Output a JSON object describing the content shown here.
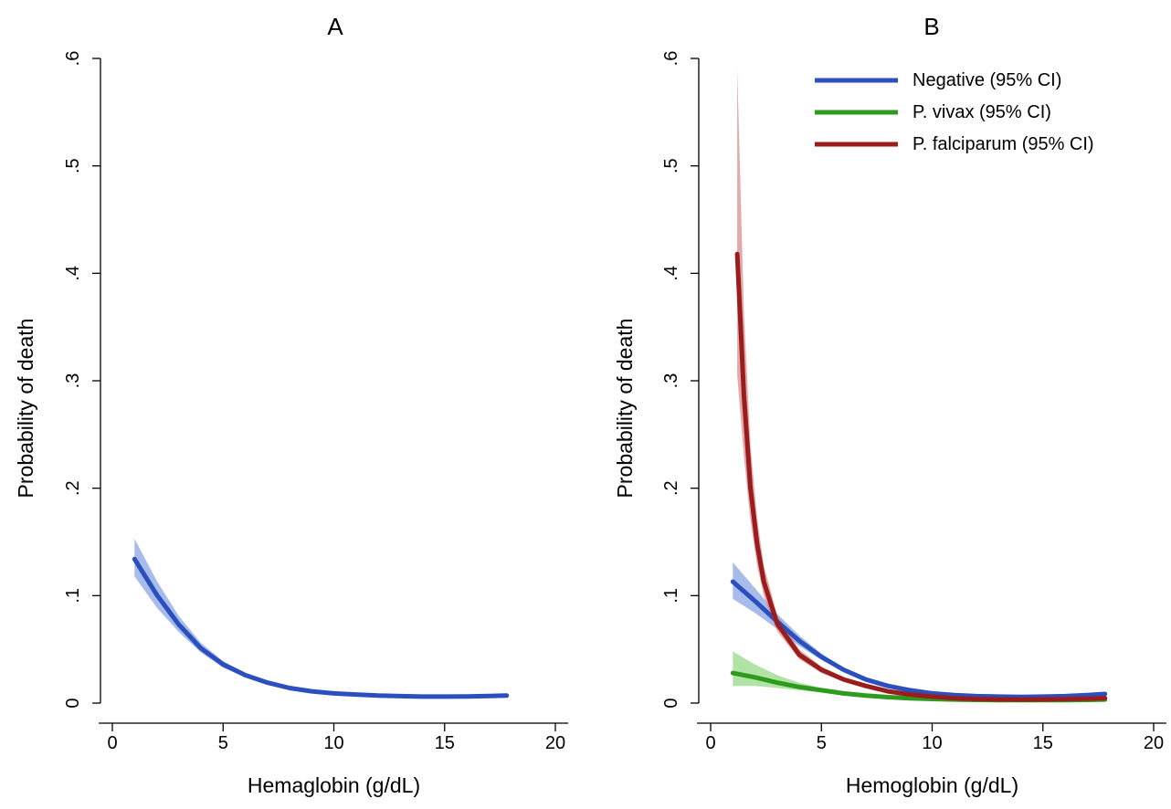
{
  "chart_data": [
    {
      "type": "line",
      "title": "A",
      "xlabel": "Hemaglobin (g/dL)",
      "ylabel": "Probability of death",
      "xlim": [
        0,
        20
      ],
      "ylim": [
        0,
        0.6
      ],
      "xticks": [
        0,
        5,
        10,
        15,
        20
      ],
      "xtick_labels": [
        "0",
        "5",
        "10",
        "15",
        "20"
      ],
      "yticks": [
        0,
        0.1,
        0.2,
        0.3,
        0.4,
        0.5,
        0.6
      ],
      "ytick_labels": [
        "0",
        ".1",
        ".2",
        ".3",
        ".4",
        ".5",
        ".6"
      ],
      "grid": false,
      "series": [
        {
          "color": "#2b4fbe",
          "band_color": "#6d8fdc",
          "x": [
            1,
            2,
            3,
            4,
            5,
            6,
            7,
            8,
            9,
            10,
            11,
            12,
            13,
            14,
            15,
            16,
            17,
            17.8
          ],
          "y": [
            0.134,
            0.101,
            0.073,
            0.051,
            0.036,
            0.026,
            0.019,
            0.014,
            0.011,
            0.009,
            0.008,
            0.007,
            0.0065,
            0.006,
            0.006,
            0.0062,
            0.0066,
            0.007
          ],
          "lower": [
            0.118,
            0.089,
            0.066,
            0.047,
            0.033,
            0.024,
            0.018,
            0.013,
            0.01,
            0.008,
            0.007,
            0.0062,
            0.0057,
            0.0053,
            0.0052,
            0.0053,
            0.0055,
            0.0057
          ],
          "upper": [
            0.153,
            0.114,
            0.081,
            0.056,
            0.039,
            0.028,
            0.02,
            0.015,
            0.012,
            0.01,
            0.009,
            0.008,
            0.0073,
            0.0068,
            0.0068,
            0.0072,
            0.0078,
            0.0085
          ]
        }
      ]
    },
    {
      "type": "line",
      "title": "B",
      "xlabel": "Hemoglobin (g/dL)",
      "ylabel": "Probability of death",
      "xlim": [
        0,
        20
      ],
      "ylim": [
        0,
        0.6
      ],
      "xticks": [
        0,
        5,
        10,
        15,
        20
      ],
      "xtick_labels": [
        "0",
        "5",
        "10",
        "15",
        "20"
      ],
      "yticks": [
        0,
        0.1,
        0.2,
        0.3,
        0.4,
        0.5,
        0.6
      ],
      "ytick_labels": [
        "0",
        ".1",
        ".2",
        ".3",
        ".4",
        ".5",
        ".6"
      ],
      "grid": false,
      "legend_position": "top-right",
      "series": [
        {
          "name": "Negative (95% CI)",
          "color": "#2b4fbe",
          "band_color": "#6d8fdc",
          "x": [
            1,
            2,
            3,
            4,
            5,
            6,
            7,
            8,
            9,
            10,
            11,
            12,
            13,
            14,
            15,
            16,
            17,
            17.8
          ],
          "y": [
            0.113,
            0.095,
            0.076,
            0.058,
            0.043,
            0.031,
            0.022,
            0.016,
            0.012,
            0.009,
            0.0075,
            0.0065,
            0.006,
            0.0058,
            0.006,
            0.0065,
            0.0075,
            0.0085
          ],
          "lower": [
            0.097,
            0.084,
            0.069,
            0.053,
            0.04,
            0.029,
            0.021,
            0.015,
            0.011,
            0.0085,
            0.007,
            0.006,
            0.0055,
            0.0053,
            0.0054,
            0.0057,
            0.0063,
            0.007
          ],
          "upper": [
            0.131,
            0.107,
            0.083,
            0.063,
            0.046,
            0.033,
            0.024,
            0.017,
            0.013,
            0.0098,
            0.008,
            0.007,
            0.0066,
            0.0064,
            0.0067,
            0.0074,
            0.0088,
            0.0102
          ]
        },
        {
          "name": "P. vivax (95% CI)",
          "color": "#2e9b1e",
          "band_color": "#7fd06a",
          "x": [
            1,
            2,
            3,
            4,
            5,
            6,
            7,
            8,
            9,
            10,
            11,
            12,
            13,
            14,
            15,
            16,
            17,
            17.8
          ],
          "y": [
            0.028,
            0.024,
            0.019,
            0.015,
            0.012,
            0.009,
            0.007,
            0.0055,
            0.0045,
            0.0038,
            0.0033,
            0.003,
            0.0028,
            0.0027,
            0.0027,
            0.0028,
            0.003,
            0.0033
          ],
          "lower": [
            0.016,
            0.016,
            0.014,
            0.012,
            0.01,
            0.008,
            0.0063,
            0.005,
            0.0041,
            0.0034,
            0.0029,
            0.0026,
            0.0023,
            0.0021,
            0.002,
            0.002,
            0.002,
            0.0021
          ],
          "upper": [
            0.048,
            0.036,
            0.026,
            0.019,
            0.014,
            0.011,
            0.0078,
            0.006,
            0.005,
            0.0042,
            0.0037,
            0.0035,
            0.0034,
            0.0034,
            0.0036,
            0.004,
            0.0046,
            0.0052
          ]
        },
        {
          "name": "P. falciparum (95% CI)",
          "color": "#9b1c1c",
          "band_color": "#d27070",
          "x": [
            1.2,
            1.5,
            1.8,
            2.1,
            2.4,
            3,
            4,
            5,
            6,
            7,
            8,
            9,
            10,
            11,
            12,
            13,
            14,
            15,
            16,
            17,
            17.8
          ],
          "y": [
            0.418,
            0.287,
            0.2,
            0.148,
            0.113,
            0.074,
            0.045,
            0.031,
            0.022,
            0.016,
            0.011,
            0.008,
            0.006,
            0.0045,
            0.0038,
            0.0034,
            0.0033,
            0.0034,
            0.0037,
            0.0042,
            0.0046
          ],
          "lower": [
            0.305,
            0.23,
            0.17,
            0.128,
            0.1,
            0.067,
            0.041,
            0.028,
            0.02,
            0.0145,
            0.01,
            0.0072,
            0.0054,
            0.004,
            0.0033,
            0.0029,
            0.0027,
            0.0027,
            0.0028,
            0.003,
            0.0032
          ],
          "upper": [
            0.59,
            0.365,
            0.24,
            0.172,
            0.128,
            0.082,
            0.05,
            0.034,
            0.024,
            0.0175,
            0.012,
            0.0088,
            0.0067,
            0.0051,
            0.0044,
            0.004,
            0.004,
            0.0043,
            0.0049,
            0.0058,
            0.0066
          ]
        }
      ]
    }
  ]
}
